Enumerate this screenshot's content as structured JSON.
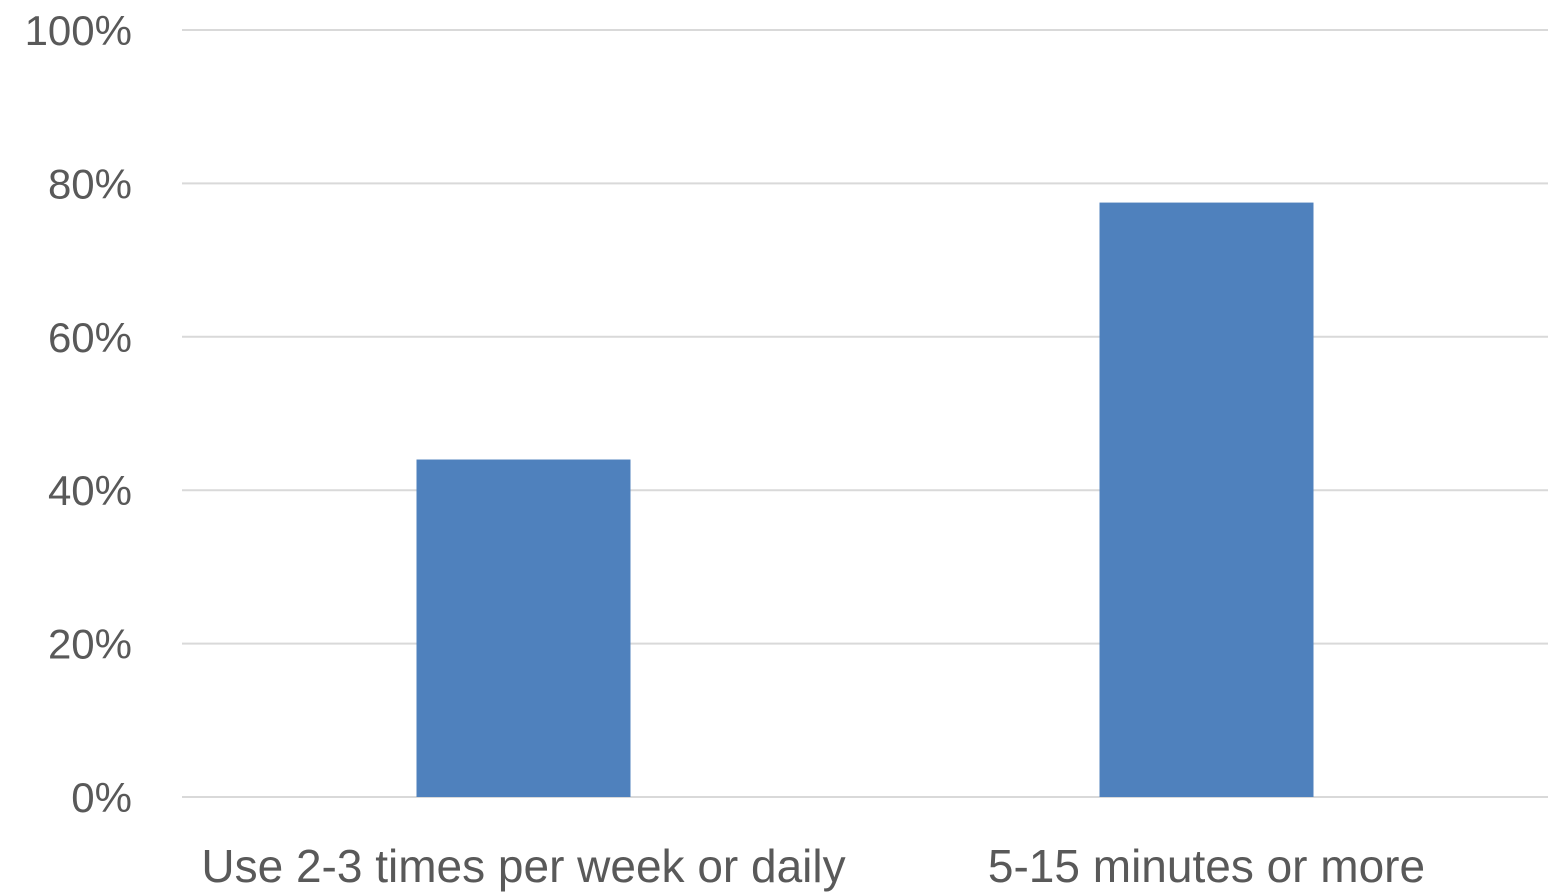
{
  "chart_data": {
    "type": "bar",
    "title": "",
    "xlabel": "",
    "ylabel": "",
    "categories": [
      "Use 2-3 times per week or daily",
      "5-15 minutes or more"
    ],
    "values": [
      44,
      77.5
    ],
    "ylim": [
      0,
      100
    ],
    "yticks": [
      0,
      20,
      40,
      60,
      80,
      100
    ],
    "ytick_labels": [
      "0%",
      "20%",
      "40%",
      "60%",
      "80%",
      "100%"
    ],
    "grid": true,
    "legend": "none",
    "bar_color": "#4f81bd"
  }
}
